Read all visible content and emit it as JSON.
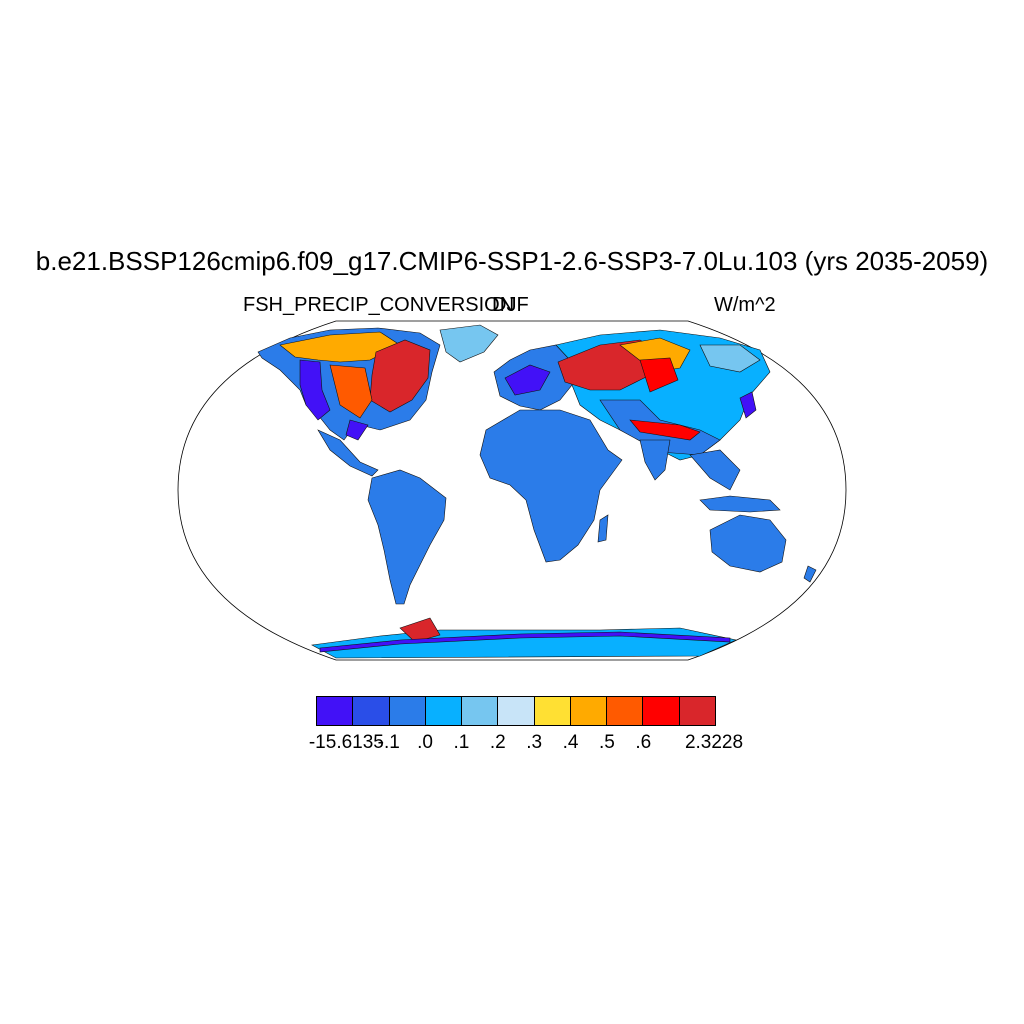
{
  "title": "b.e21.BSSP126cmip6.f09_g17.CMIP6-SSP1-2.6-SSP3-7.0Lu.103 (yrs 2035-2059)",
  "left_string": "FSH_PRECIP_CONVERSION",
  "center_string": "DJF",
  "right_string": "W/m^2",
  "colorbar": {
    "colors": [
      "#4211f7",
      "#2a4ee8",
      "#2b7ce9",
      "#08b0ff",
      "#76c6f0",
      "#c8e4f8",
      "#ffe033",
      "#ffaa00",
      "#ff5a00",
      "#ff0000",
      "#d9262b"
    ],
    "labels": [
      "-15.6135",
      "-.1",
      ".0",
      ".1",
      ".2",
      ".3",
      ".4",
      ".5",
      ".6",
      "2.3228"
    ]
  },
  "map": {
    "projection": "Robinson",
    "colors": {
      "background": "#2b7ce9",
      "light_blue": "#08b0ff",
      "pale_blue": "#76c6f0",
      "very_pale": "#c8e4f8",
      "yellow": "#ffe033",
      "orange": "#ffaa00",
      "dark_orange": "#ff5a00",
      "red": "#ff0000",
      "dark_red": "#d9262b",
      "purple": "#4211f7",
      "blue": "#2a4ee8"
    }
  }
}
